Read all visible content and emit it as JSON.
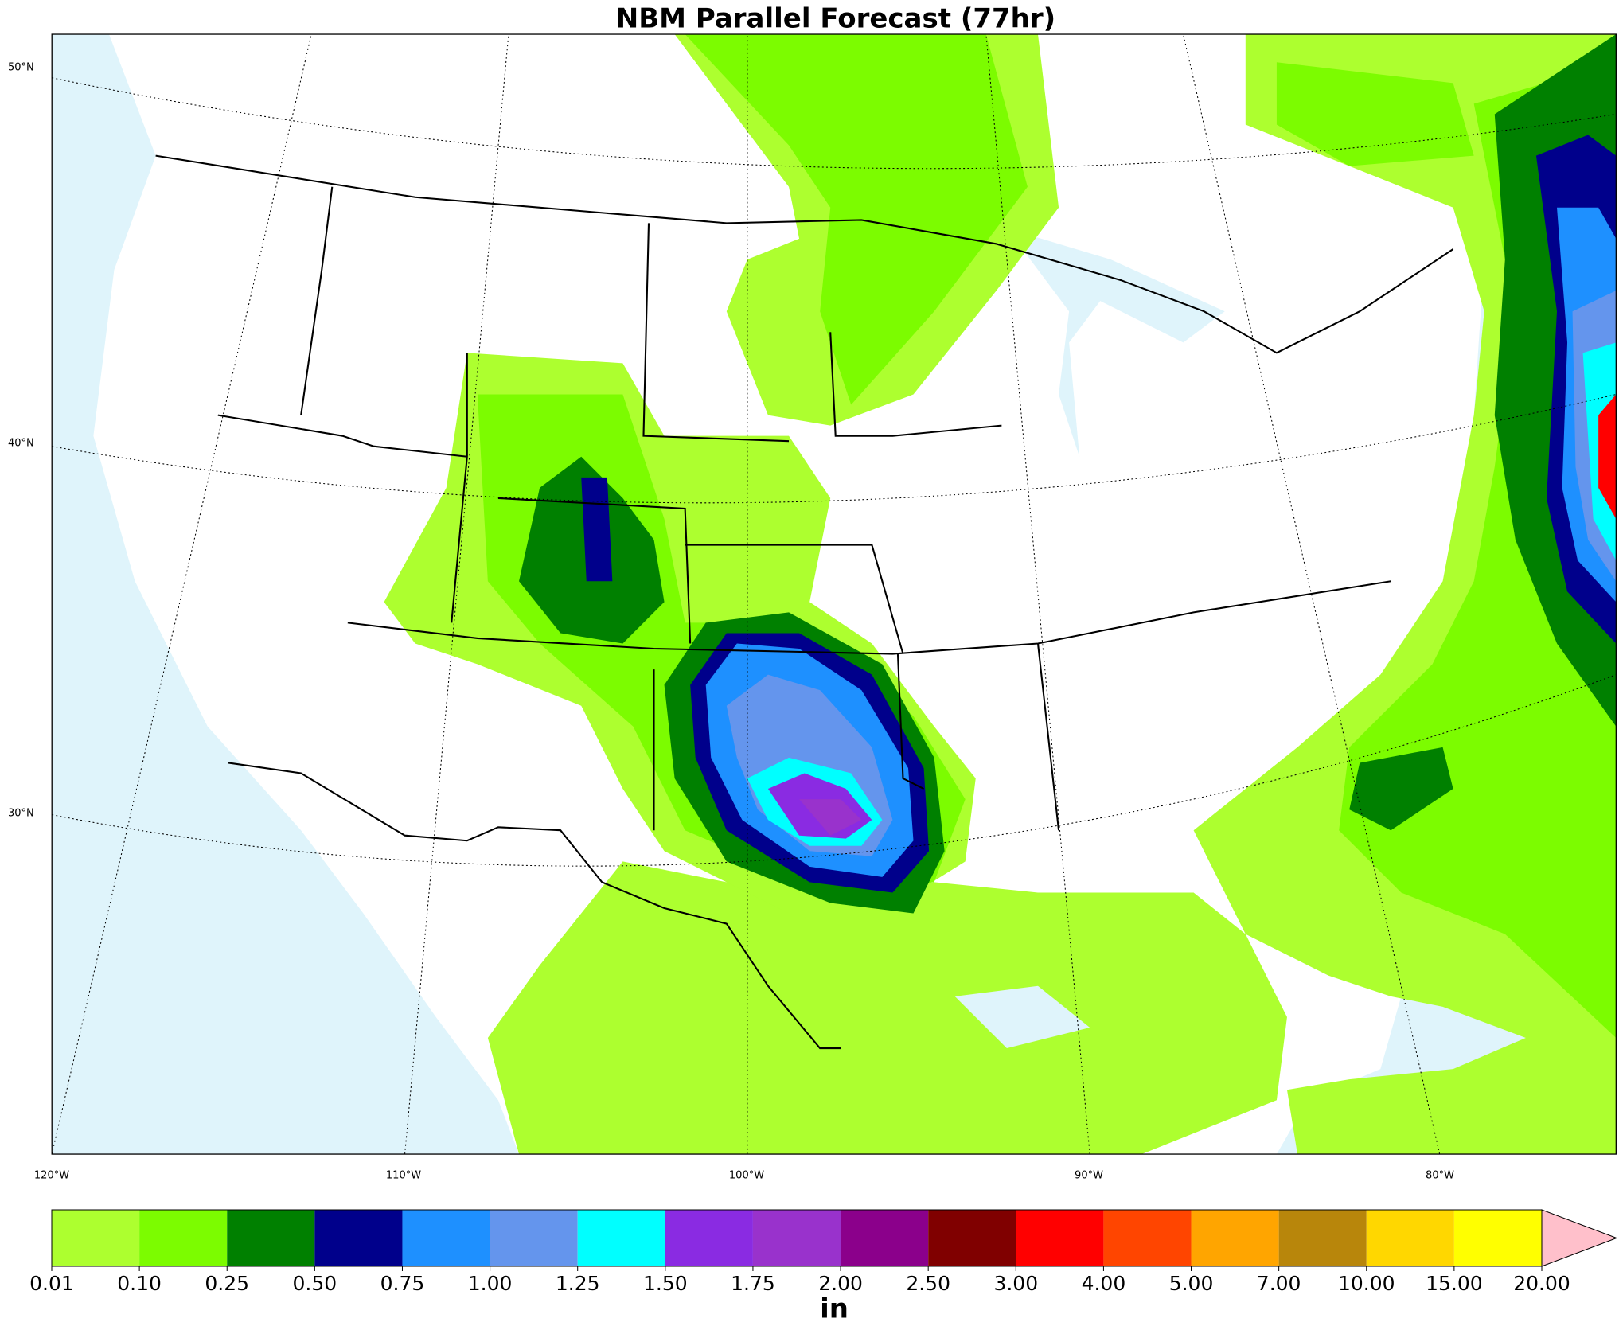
{
  "title": "NBM Parallel Forecast (77hr)",
  "map": {
    "lat_labels": [
      "50°N",
      "40°N",
      "30°N"
    ],
    "lon_labels": [
      "120°W",
      "110°W",
      "100°W",
      "90°W",
      "80°W"
    ]
  },
  "colorbar": {
    "levels": [
      "0.01",
      "0.10",
      "0.25",
      "0.50",
      "0.75",
      "1.00",
      "1.25",
      "1.50",
      "1.75",
      "2.00",
      "2.50",
      "3.00",
      "4.00",
      "5.00",
      "7.00",
      "10.00",
      "15.00",
      "20.00"
    ],
    "colors": [
      "#adff2f",
      "#7cfc00",
      "#008000",
      "#00008b",
      "#1e90ff",
      "#6495ed",
      "#00ffff",
      "#8a2be2",
      "#9932cc",
      "#8b008b",
      "#800000",
      "#ff0000",
      "#ff4500",
      "#ffa500",
      "#b8860b",
      "#ffd700",
      "#ffff00"
    ],
    "extend_color": "#ffc0cb",
    "label": "in"
  }
}
